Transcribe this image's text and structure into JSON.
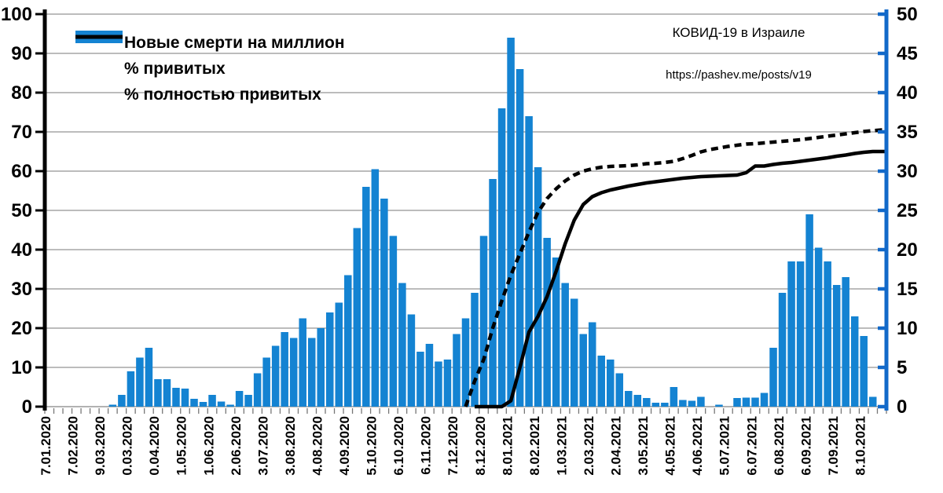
{
  "title": "КОВИД-19 в Израиле",
  "source_url": "https://pashev.me/posts/v19",
  "colors": {
    "bar": "#1483D2",
    "line": "#000000",
    "right_axis": "#1269C9",
    "left_axis": "#000000",
    "grid": "#A6A6A6",
    "baseline": "#999999",
    "x_tick": "#777777",
    "text": "#000000"
  },
  "legend": {
    "items": [
      {
        "swatch": "bar",
        "label": "Новые смерти на миллион"
      },
      {
        "swatch": "dashed-line",
        "label": "% привитых"
      },
      {
        "swatch": "solid-line",
        "label": "% полностью привитых"
      }
    ]
  },
  "chart_data": {
    "type": "bar",
    "title": "КОВИД-19 в Израиле",
    "annotation": "https://pashev.me/posts/v19",
    "legend_position": "top-left",
    "grid": true,
    "left_axis": {
      "min": 0,
      "max": 100,
      "ticks": [
        0,
        10,
        20,
        30,
        40,
        50,
        60,
        70,
        80,
        90,
        100
      ]
    },
    "right_axis": {
      "min": 0,
      "max": 50,
      "ticks": [
        0,
        5,
        10,
        15,
        20,
        25,
        30,
        35,
        40,
        45,
        50
      ]
    },
    "weeks_total": 93,
    "x_label_every_n_weeks": 3,
    "x_labels": [
      "7.01.2020",
      "7.02.2020",
      "9.03.2020",
      "0.03.2020",
      "0.04.2020",
      "1.05.2020",
      "1.06.2020",
      "2.06.2020",
      "3.07.2020",
      "3.08.2020",
      "4.08.2020",
      "4.09.2020",
      "5.10.2020",
      "6.10.2020",
      "6.11.2020",
      "7.12.2020",
      "8.12.2020",
      "8.01.2021",
      "8.02.2021",
      "1.03.2021",
      "2.03.2021",
      "2.04.2021",
      "3.05.2021",
      "4.05.2021",
      "4.06.2021",
      "5.07.2021",
      "6.07.2021",
      "6.08.2021",
      "6.09.2021",
      "7.09.2021",
      "8.10.2021"
    ],
    "series": [
      {
        "name": "Новые смерти на миллион",
        "type": "bar",
        "axis": "left",
        "start_week": 0,
        "values": [
          0,
          0,
          0,
          0,
          0,
          0,
          0,
          0.5,
          3,
          9,
          12.5,
          15,
          7,
          7,
          4.8,
          4.6,
          2,
          1.2,
          3,
          1.3,
          0.5,
          4,
          3,
          8.5,
          12.5,
          15.5,
          19,
          17.5,
          22.5,
          17.5,
          20,
          24,
          26.5,
          33.5,
          45.5,
          56,
          60.5,
          53,
          43.5,
          31.5,
          23.5,
          14,
          16,
          11.5,
          12,
          18.5,
          22.5,
          29,
          43.5,
          58,
          76,
          94,
          86,
          74,
          61,
          43,
          38,
          31.5,
          27.5,
          18.5,
          21.5,
          13,
          12,
          8.5,
          4,
          3,
          2.2,
          1,
          1,
          5,
          1.7,
          1.5,
          2.5,
          0,
          0.5,
          0,
          2.2,
          2.3,
          2.3,
          3.5,
          15,
          29,
          37,
          37,
          49,
          40.5,
          37,
          31,
          33,
          23,
          18,
          2.5,
          0
        ]
      },
      {
        "name": "% привитых",
        "type": "line",
        "style": "dashed",
        "axis": "left",
        "start_week": 46,
        "values": [
          0,
          6.5,
          12,
          20,
          27,
          33.5,
          39,
          44.5,
          49.5,
          53,
          55.5,
          57.5,
          59,
          60,
          60.6,
          61,
          61.2,
          61.3,
          61.4,
          61.6,
          61.9,
          62,
          62.2,
          62.5,
          63.2,
          64,
          64.9,
          65.5,
          65.9,
          66.3,
          66.6,
          66.9,
          67,
          67.2,
          67.4,
          67.6,
          67.8,
          68,
          68.3,
          68.6,
          68.9,
          69.2,
          69.5,
          69.8,
          70.1,
          70.3,
          70.5
        ]
      },
      {
        "name": "% полностью привитых",
        "type": "line",
        "style": "solid",
        "axis": "left",
        "start_week": 47,
        "values": [
          0,
          0,
          0,
          0,
          1.5,
          10,
          19,
          23,
          28,
          34.5,
          41.5,
          47.5,
          51.5,
          53.5,
          54.5,
          55.2,
          55.7,
          56.2,
          56.6,
          57,
          57.3,
          57.6,
          57.9,
          58.2,
          58.4,
          58.6,
          58.7,
          58.8,
          58.9,
          59,
          59.6,
          61.3,
          61.3,
          61.7,
          62,
          62.2,
          62.5,
          62.8,
          63.1,
          63.4,
          63.8,
          64.1,
          64.5,
          64.8,
          65,
          65
        ]
      }
    ]
  }
}
